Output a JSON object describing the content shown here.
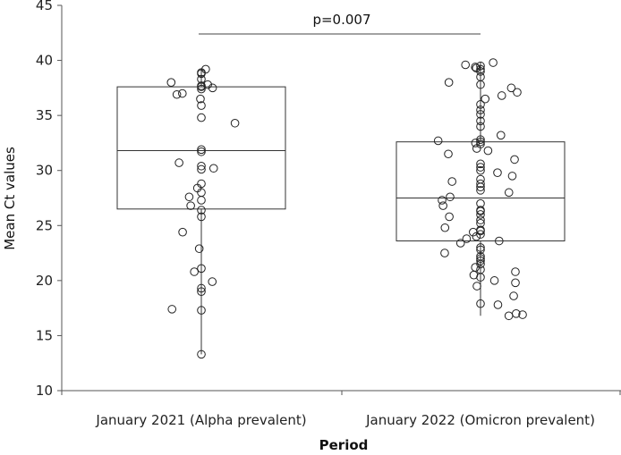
{
  "chart_data": {
    "type": "box",
    "ylabel": "Mean Ct values",
    "xlabel": "Period",
    "ylim": [
      10,
      45
    ],
    "yticks": [
      10,
      15,
      20,
      25,
      30,
      35,
      40,
      45
    ],
    "grid": false,
    "annotation": "p=0.007",
    "groups": [
      {
        "category": "January 2021 (Alpha prevalent)",
        "box": {
          "whisker_low": 13.3,
          "q1": 26.5,
          "median": 31.8,
          "q3": 37.6,
          "whisker_high": 39.2
        },
        "points": [
          39.2,
          38.9,
          38.8,
          38.3,
          38.0,
          37.8,
          37.7,
          37.6,
          37.5,
          37.4,
          37.0,
          36.9,
          36.5,
          35.9,
          34.8,
          34.3,
          31.9,
          31.7,
          30.7,
          30.4,
          30.2,
          30.1,
          28.8,
          28.4,
          28.0,
          27.6,
          27.3,
          26.8,
          26.4,
          25.8,
          24.4,
          22.9,
          21.1,
          20.8,
          19.9,
          19.3,
          19.0,
          17.4,
          17.3,
          13.3
        ]
      },
      {
        "category": "January 2022 (Omicron prevalent)",
        "box": {
          "whisker_low": 16.8,
          "q1": 23.6,
          "median": 27.5,
          "q3": 32.6,
          "whisker_high": 39.8
        },
        "points": [
          39.8,
          39.6,
          39.5,
          39.4,
          39.3,
          39.2,
          39.0,
          38.5,
          38.0,
          37.8,
          37.5,
          37.1,
          36.8,
          36.5,
          36.0,
          35.5,
          35.1,
          34.5,
          34.0,
          33.2,
          32.8,
          32.7,
          32.6,
          32.5,
          32.4,
          32.0,
          31.8,
          31.5,
          31.0,
          30.6,
          30.3,
          30.0,
          29.8,
          29.5,
          29.2,
          29.0,
          28.8,
          28.5,
          28.2,
          28.0,
          27.6,
          27.3,
          27.0,
          26.8,
          26.4,
          26.3,
          26.0,
          25.8,
          25.5,
          25.2,
          24.8,
          24.6,
          24.5,
          24.4,
          24.2,
          24.0,
          23.8,
          23.6,
          23.4,
          23.0,
          22.8,
          22.5,
          22.2,
          22.0,
          21.8,
          21.5,
          21.2,
          21.0,
          20.8,
          20.5,
          20.3,
          20.0,
          19.8,
          19.5,
          18.6,
          17.9,
          17.8,
          17.0,
          16.9,
          16.8
        ]
      }
    ]
  }
}
